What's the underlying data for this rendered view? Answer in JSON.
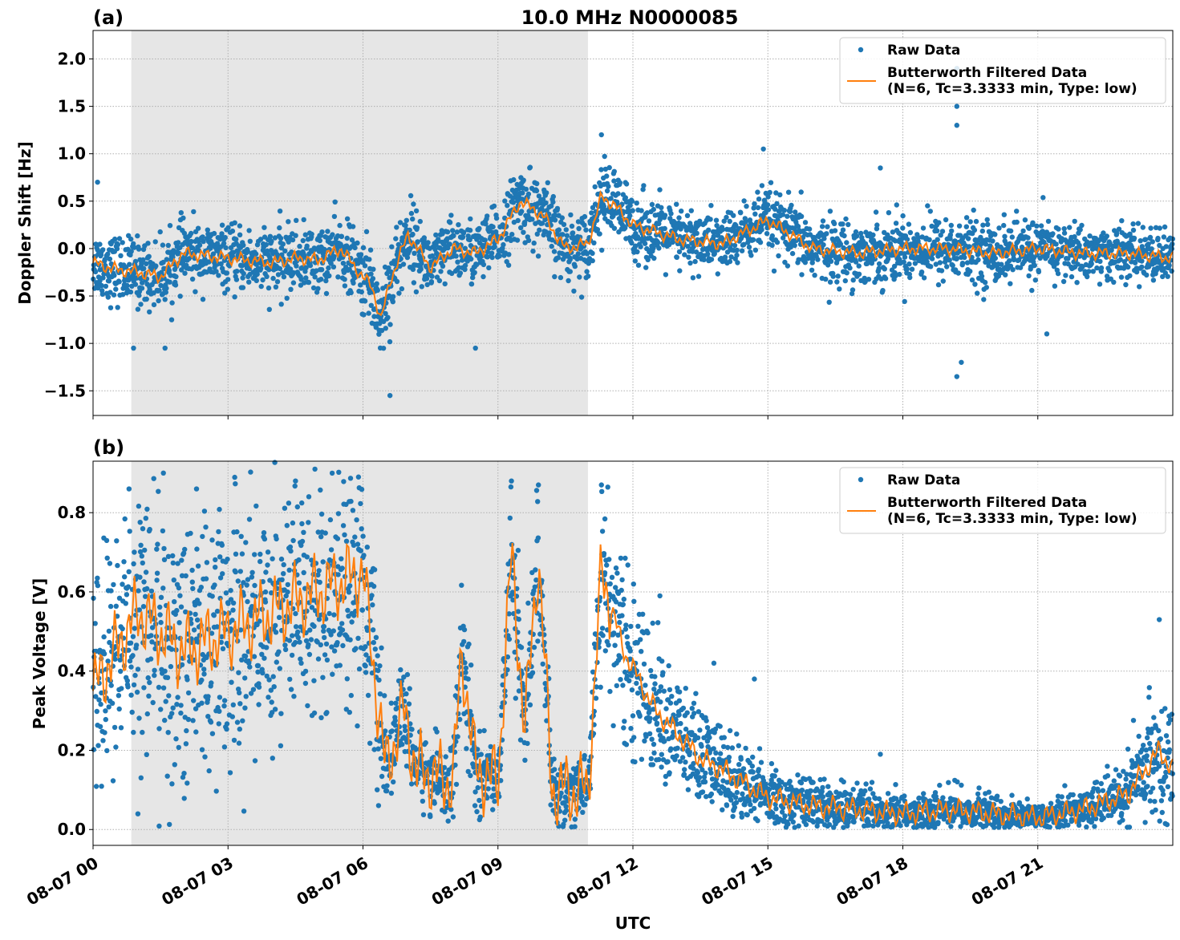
{
  "figure": {
    "title": "10.0 MHz N0000085",
    "xlabel": "UTC",
    "x_tick_labels": [
      "08-07 00",
      "08-07 03",
      "08-07 06",
      "08-07 09",
      "08-07 12",
      "08-07 15",
      "08-07 18",
      "08-07 21"
    ]
  },
  "colors": {
    "raw": "#1f77b4",
    "filtered": "#ff7f0e",
    "shade": "#e6e6e6",
    "grid": "#b0b0b0"
  },
  "chart_data": [
    {
      "type": "scatter",
      "panel_label": "(a)",
      "ylabel": "Doppler Shift [Hz]",
      "x_unit": "hours UTC on 08-07",
      "xlim": [
        0,
        24
      ],
      "ylim": [
        -1.76,
        2.3
      ],
      "x_ticks": [
        0,
        3,
        6,
        9,
        12,
        15,
        18,
        21
      ],
      "y_ticks": [
        -1.5,
        -1.0,
        -0.5,
        0.0,
        0.5,
        1.0,
        1.5,
        2.0
      ],
      "y_tick_labels": [
        "−1.5",
        "−1.0",
        "−0.5",
        "0.0",
        "0.5",
        "1.0",
        "1.5",
        "2.0"
      ],
      "grid": true,
      "shaded_interval_hours": [
        0.85,
        11.0
      ],
      "legend": {
        "placement": "top-right",
        "entries": [
          "Raw Data",
          "Butterworth Filtered Data\n(N=6, Tc=3.3333 min, Type: low)"
        ]
      },
      "series": [
        {
          "name": "Raw Data",
          "kind": "scatter",
          "x": [
            0,
            0.5,
            1,
            1.5,
            2,
            3,
            4,
            4.5,
            5,
            5.5,
            6,
            6.2,
            6.4,
            6.6,
            7,
            7.5,
            8,
            8.5,
            9,
            9.5,
            10,
            10.5,
            11,
            11.3,
            11.6,
            12,
            13,
            14,
            15,
            16,
            17,
            18,
            19,
            20,
            21,
            22,
            23,
            24
          ],
          "y": [
            -0.15,
            -0.22,
            -0.25,
            -0.3,
            -0.05,
            -0.1,
            -0.15,
            -0.1,
            -0.12,
            0.0,
            -0.3,
            -0.4,
            -0.75,
            -0.35,
            0.15,
            -0.2,
            0.0,
            -0.05,
            0.1,
            0.5,
            0.35,
            0.0,
            0.05,
            0.55,
            0.45,
            0.25,
            0.1,
            0.05,
            0.3,
            0.0,
            -0.05,
            0.0,
            0.0,
            -0.05,
            0.0,
            -0.05,
            -0.05,
            -0.1
          ],
          "spread": [
            0.3,
            0.32,
            0.32,
            0.3,
            0.3,
            0.28,
            0.32,
            0.3,
            0.3,
            0.3,
            0.35,
            0.4,
            0.45,
            0.4,
            0.35,
            0.3,
            0.3,
            0.3,
            0.3,
            0.35,
            0.35,
            0.3,
            0.3,
            0.35,
            0.35,
            0.32,
            0.3,
            0.28,
            0.3,
            0.3,
            0.3,
            0.3,
            0.3,
            0.3,
            0.28,
            0.26,
            0.25,
            0.25
          ],
          "outliers": [
            [
              11.3,
              1.2
            ],
            [
              14.9,
              1.05
            ],
            [
              19.2,
              1.9
            ],
            [
              19.2,
              1.5
            ],
            [
              19.2,
              1.3
            ],
            [
              19.2,
              -1.35
            ],
            [
              19.3,
              -1.2
            ],
            [
              6.6,
              -1.55
            ],
            [
              0.9,
              -1.05
            ],
            [
              1.6,
              -1.05
            ],
            [
              8.5,
              -1.05
            ],
            [
              17.5,
              0.85
            ],
            [
              21.2,
              -0.9
            ],
            [
              0.1,
              0.7
            ]
          ]
        },
        {
          "name": "Butterworth Filtered Data\n(N=6, Tc=3.3333 min, Type: low)",
          "kind": "line",
          "x": [
            0,
            0.5,
            1,
            1.5,
            2,
            3,
            4,
            4.5,
            5,
            5.5,
            6,
            6.2,
            6.4,
            6.6,
            7,
            7.5,
            8,
            8.5,
            9,
            9.5,
            10,
            10.5,
            11,
            11.3,
            11.6,
            12,
            13,
            14,
            15,
            16,
            17,
            18,
            19,
            20,
            21,
            22,
            23,
            24
          ],
          "y": [
            -0.15,
            -0.22,
            -0.25,
            -0.3,
            -0.05,
            -0.1,
            -0.15,
            -0.1,
            -0.12,
            0.0,
            -0.3,
            -0.4,
            -0.75,
            -0.35,
            0.15,
            -0.2,
            0.0,
            -0.05,
            0.1,
            0.5,
            0.35,
            0.0,
            0.05,
            0.55,
            0.45,
            0.25,
            0.1,
            0.05,
            0.3,
            0.0,
            -0.05,
            0.0,
            0.0,
            -0.05,
            0.0,
            -0.05,
            -0.05,
            -0.1
          ]
        }
      ]
    },
    {
      "type": "scatter",
      "panel_label": "(b)",
      "ylabel": "Peak Voltage [V]",
      "x_unit": "hours UTC on 08-07",
      "xlim": [
        0,
        24
      ],
      "ylim": [
        -0.04,
        0.93
      ],
      "x_ticks": [
        0,
        3,
        6,
        9,
        12,
        15,
        18,
        21
      ],
      "y_ticks": [
        0.0,
        0.2,
        0.4,
        0.6,
        0.8
      ],
      "y_tick_labels": [
        "0.0",
        "0.2",
        "0.4",
        "0.6",
        "0.8"
      ],
      "grid": true,
      "shaded_interval_hours": [
        0.85,
        11.0
      ],
      "legend": {
        "placement": "top-right",
        "entries": [
          "Raw Data",
          "Butterworth Filtered Data\n(N=6, Tc=3.3333 min, Type: low)"
        ]
      },
      "series": [
        {
          "name": "Raw Data",
          "kind": "scatter",
          "x": [
            0,
            0.5,
            1,
            1.5,
            2,
            3,
            4,
            5,
            6,
            6.2,
            6.5,
            6.9,
            7.2,
            8,
            8.2,
            8.5,
            9.0,
            9.3,
            9.6,
            9.9,
            10.2,
            11.0,
            11.3,
            11.8,
            12.5,
            13.5,
            14.0,
            15,
            16,
            17,
            18,
            19,
            20,
            21,
            22,
            23,
            23.7,
            24
          ],
          "y": [
            0.35,
            0.45,
            0.55,
            0.5,
            0.45,
            0.5,
            0.55,
            0.6,
            0.65,
            0.45,
            0.15,
            0.3,
            0.15,
            0.12,
            0.45,
            0.15,
            0.12,
            0.7,
            0.25,
            0.7,
            0.1,
            0.1,
            0.65,
            0.45,
            0.3,
            0.18,
            0.15,
            0.08,
            0.06,
            0.05,
            0.04,
            0.05,
            0.04,
            0.03,
            0.05,
            0.09,
            0.2,
            0.15
          ],
          "spread": [
            0.25,
            0.3,
            0.3,
            0.3,
            0.3,
            0.3,
            0.3,
            0.28,
            0.25,
            0.25,
            0.08,
            0.12,
            0.08,
            0.08,
            0.2,
            0.08,
            0.08,
            0.15,
            0.15,
            0.15,
            0.08,
            0.08,
            0.2,
            0.2,
            0.15,
            0.12,
            0.1,
            0.07,
            0.06,
            0.05,
            0.04,
            0.05,
            0.04,
            0.03,
            0.05,
            0.07,
            0.15,
            0.12
          ],
          "outliers": [
            [
              11.3,
              0.87
            ],
            [
              12.6,
              0.59
            ],
            [
              13.8,
              0.42
            ],
            [
              14.7,
              0.38
            ],
            [
              17.5,
              0.19
            ],
            [
              23.7,
              0.53
            ],
            [
              0.8,
              0.86
            ],
            [
              2.3,
              0.86
            ],
            [
              4.5,
              0.88
            ],
            [
              5.9,
              0.89
            ],
            [
              9.3,
              0.88
            ],
            [
              9.9,
              0.87
            ]
          ]
        },
        {
          "name": "Butterworth Filtered Data\n(N=6, Tc=3.3333 min, Type: low)",
          "kind": "line",
          "x": [
            0,
            0.5,
            1,
            1.5,
            2,
            3,
            4,
            5,
            6,
            6.2,
            6.5,
            6.9,
            7.2,
            8,
            8.2,
            8.5,
            9.0,
            9.3,
            9.6,
            9.9,
            10.2,
            11.0,
            11.3,
            11.8,
            12.5,
            13.5,
            14.0,
            15,
            16,
            17,
            18,
            19,
            20,
            21,
            22,
            23,
            23.7,
            24
          ],
          "y": [
            0.35,
            0.45,
            0.55,
            0.5,
            0.45,
            0.5,
            0.55,
            0.6,
            0.65,
            0.45,
            0.15,
            0.3,
            0.15,
            0.12,
            0.45,
            0.15,
            0.12,
            0.7,
            0.25,
            0.7,
            0.1,
            0.1,
            0.65,
            0.45,
            0.3,
            0.18,
            0.15,
            0.08,
            0.06,
            0.05,
            0.04,
            0.05,
            0.04,
            0.03,
            0.05,
            0.09,
            0.2,
            0.15
          ]
        }
      ]
    }
  ]
}
